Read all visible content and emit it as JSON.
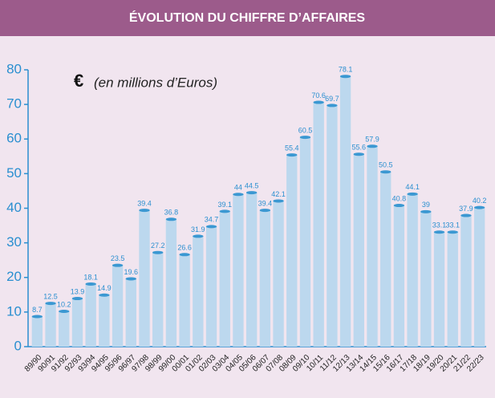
{
  "chart_data": {
    "type": "bar",
    "title": "ÉVOLUTION DU CHIFFRE D’AFFAIRES",
    "annotations": [
      "€",
      "(en millions d’Euros)"
    ],
    "categories": [
      "89/90",
      "90/91",
      "91/92",
      "92/93",
      "93/94",
      "94/95",
      "95/96",
      "96/97",
      "97/98",
      "98/99",
      "99/00",
      "00/01",
      "01/02",
      "02/03",
      "03/04",
      "04/05",
      "05/06",
      "06/07",
      "07/08",
      "08/09",
      "09/10",
      "10/11",
      "11/12",
      "12/13",
      "13/14",
      "14/15",
      "15/16",
      "16/17",
      "17/18",
      "18/19",
      "19/20",
      "20/21",
      "21/22",
      "22/23"
    ],
    "values": [
      8.7,
      12.5,
      10.2,
      13.9,
      18.1,
      14.9,
      23.5,
      19.6,
      39.4,
      27.2,
      36.8,
      26.6,
      31.9,
      34.7,
      39.1,
      44,
      44.5,
      39.4,
      42.1,
      55.4,
      60.5,
      70.6,
      69.7,
      78.1,
      55.6,
      57.9,
      50.5,
      40.8,
      44.1,
      39,
      33.1,
      33.1,
      37.9,
      40.2
    ],
    "color": "#bcd8ee",
    "ylim": [
      0,
      80
    ],
    "yticks": [
      0,
      10,
      20,
      30,
      40,
      50,
      60,
      70,
      80
    ],
    "grid": false
  }
}
